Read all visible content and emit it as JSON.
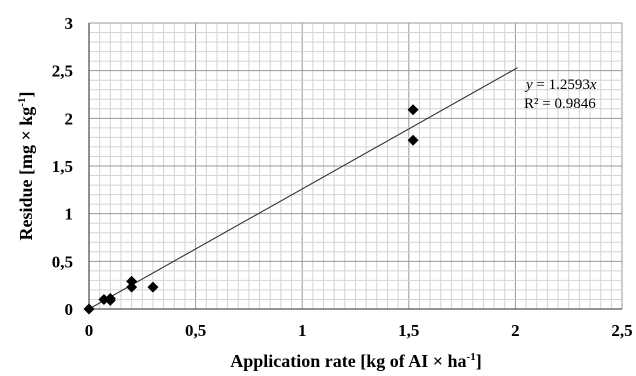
{
  "chart_data": {
    "type": "scatter",
    "title": "",
    "xlabel": {
      "prefix": "Application rate [kg of AI × ha",
      "sup": "-1",
      "suffix": "]"
    },
    "ylabel": {
      "prefix": "Residue [mg × kg",
      "sup": "-1",
      "suffix": "]"
    },
    "xlim": [
      0,
      2.5
    ],
    "ylim": [
      0,
      3
    ],
    "x_ticks": [
      "0",
      "0,5",
      "1",
      "1,5",
      "2",
      "2,5"
    ],
    "y_ticks": [
      "0",
      "0,5",
      "1",
      "1,5",
      "2",
      "2,5",
      "3"
    ],
    "grid": true,
    "marker": "diamond",
    "marker_color": "#000000",
    "series": [
      {
        "points": [
          {
            "x": 0,
            "y": 0
          },
          {
            "x": 0.07,
            "y": 0.1
          },
          {
            "x": 0.1,
            "y": 0.11
          },
          {
            "x": 0.1,
            "y": 0.09
          },
          {
            "x": 0.2,
            "y": 0.29
          },
          {
            "x": 0.2,
            "y": 0.23
          },
          {
            "x": 0.3,
            "y": 0.23
          },
          {
            "x": 1.52,
            "y": 2.09
          },
          {
            "x": 1.52,
            "y": 1.77
          }
        ]
      }
    ],
    "trendline": {
      "slope": 1.2593,
      "x_range": [
        0,
        2.01
      ],
      "equation_var_y": "y",
      "equation_mid": " = 1.2593",
      "equation_var_x": "x",
      "r2_label": "R² = 0.9846"
    }
  }
}
